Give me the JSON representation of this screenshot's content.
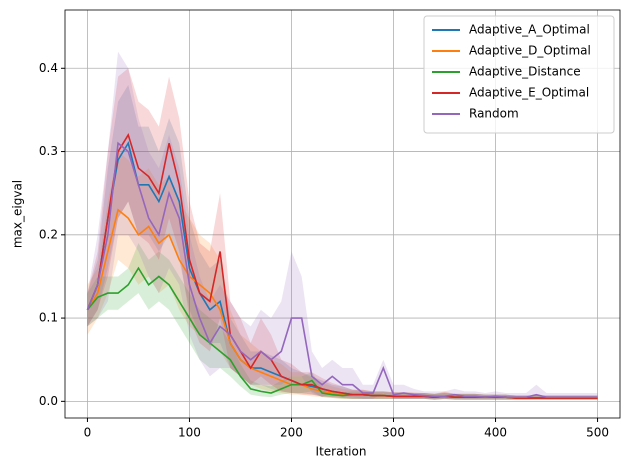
{
  "chart_data": {
    "type": "line",
    "x_label": "Iteration",
    "y_label": "max_eigval",
    "x": [
      0,
      10,
      20,
      30,
      40,
      50,
      60,
      70,
      80,
      90,
      100,
      110,
      120,
      130,
      140,
      150,
      160,
      170,
      180,
      190,
      200,
      210,
      220,
      230,
      240,
      250,
      260,
      270,
      280,
      290,
      300,
      310,
      320,
      330,
      340,
      350,
      360,
      370,
      380,
      390,
      400,
      410,
      420,
      430,
      440,
      450,
      460,
      470,
      480,
      490,
      500
    ],
    "xlim": [
      -22,
      522
    ],
    "ylim": [
      -0.02,
      0.47
    ],
    "xticks": [
      0,
      100,
      200,
      300,
      400,
      500
    ],
    "yticks": [
      {
        "value": 0,
        "label": "0.0"
      },
      0.1,
      0.2,
      0.3,
      0.4
    ],
    "grid": true,
    "legend": "upper right",
    "series": [
      {
        "name": "Adaptive_A_Optimal",
        "color": "#1f77b4",
        "values": [
          0.11,
          0.14,
          0.22,
          0.29,
          0.31,
          0.26,
          0.26,
          0.24,
          0.27,
          0.24,
          0.16,
          0.13,
          0.11,
          0.12,
          0.07,
          0.05,
          0.04,
          0.04,
          0.035,
          0.03,
          0.025,
          0.02,
          0.018,
          0.015,
          0.012,
          0.01,
          0.008,
          0.008,
          0.007,
          0.007,
          0.006,
          0.006,
          0.006,
          0.006,
          0.005,
          0.006,
          0.005,
          0.005,
          0.005,
          0.005,
          0.005,
          0.005,
          0.004,
          0.004,
          0.004,
          0.004,
          0.004,
          0.004,
          0.004,
          0.004,
          0.004
        ],
        "lower": [
          0.09,
          0.11,
          0.16,
          0.22,
          0.24,
          0.2,
          0.2,
          0.18,
          0.2,
          0.17,
          0.11,
          0.08,
          0.07,
          0.07,
          0.04,
          0.03,
          0.02,
          0.02,
          0.015,
          0.012,
          0.01,
          0.01,
          0.008,
          0.006,
          0.005,
          0.004,
          0.003,
          0.003,
          0.003,
          0.003,
          0.003,
          0.003,
          0.003,
          0.003,
          0.002,
          0.003,
          0.002,
          0.002,
          0.002,
          0.002,
          0.002,
          0.002,
          0.002,
          0.002,
          0.002,
          0.002,
          0.002,
          0.002,
          0.002,
          0.002,
          0.002
        ],
        "upper": [
          0.13,
          0.17,
          0.28,
          0.36,
          0.38,
          0.33,
          0.33,
          0.3,
          0.34,
          0.31,
          0.22,
          0.18,
          0.16,
          0.17,
          0.1,
          0.08,
          0.06,
          0.06,
          0.055,
          0.05,
          0.04,
          0.035,
          0.03,
          0.025,
          0.02,
          0.018,
          0.014,
          0.013,
          0.012,
          0.012,
          0.011,
          0.011,
          0.01,
          0.01,
          0.009,
          0.01,
          0.009,
          0.009,
          0.009,
          0.008,
          0.008,
          0.008,
          0.007,
          0.007,
          0.007,
          0.007,
          0.007,
          0.007,
          0.007,
          0.007,
          0.007
        ]
      },
      {
        "name": "Adaptive_D_Optimal",
        "color": "#ff7f0e",
        "values": [
          0.11,
          0.13,
          0.18,
          0.23,
          0.22,
          0.2,
          0.21,
          0.19,
          0.2,
          0.17,
          0.15,
          0.14,
          0.13,
          0.11,
          0.07,
          0.05,
          0.04,
          0.035,
          0.03,
          0.025,
          0.02,
          0.02,
          0.015,
          0.012,
          0.01,
          0.008,
          0.008,
          0.008,
          0.007,
          0.007,
          0.006,
          0.006,
          0.006,
          0.006,
          0.005,
          0.006,
          0.005,
          0.005,
          0.005,
          0.005,
          0.005,
          0.005,
          0.004,
          0.004,
          0.004,
          0.004,
          0.004,
          0.004,
          0.004,
          0.004,
          0.004
        ],
        "lower": [
          0.08,
          0.1,
          0.13,
          0.17,
          0.16,
          0.14,
          0.15,
          0.13,
          0.14,
          0.11,
          0.09,
          0.08,
          0.07,
          0.06,
          0.04,
          0.03,
          0.02,
          0.015,
          0.012,
          0.01,
          0.008,
          0.008,
          0.006,
          0.005,
          0.004,
          0.003,
          0.003,
          0.003,
          0.003,
          0.003,
          0.003,
          0.003,
          0.003,
          0.003,
          0.002,
          0.003,
          0.002,
          0.002,
          0.002,
          0.002,
          0.002,
          0.002,
          0.002,
          0.002,
          0.002,
          0.002,
          0.002,
          0.002,
          0.002,
          0.002,
          0.002
        ],
        "upper": [
          0.14,
          0.16,
          0.24,
          0.3,
          0.29,
          0.27,
          0.28,
          0.26,
          0.27,
          0.24,
          0.22,
          0.2,
          0.19,
          0.17,
          0.11,
          0.08,
          0.07,
          0.06,
          0.05,
          0.045,
          0.035,
          0.035,
          0.028,
          0.022,
          0.018,
          0.015,
          0.014,
          0.014,
          0.012,
          0.012,
          0.011,
          0.011,
          0.011,
          0.01,
          0.009,
          0.012,
          0.009,
          0.009,
          0.009,
          0.008,
          0.008,
          0.008,
          0.007,
          0.007,
          0.007,
          0.007,
          0.007,
          0.007,
          0.007,
          0.007,
          0.007
        ]
      },
      {
        "name": "Adaptive_Distance",
        "color": "#2ca02c",
        "values": [
          0.11,
          0.125,
          0.13,
          0.13,
          0.14,
          0.16,
          0.14,
          0.15,
          0.14,
          0.12,
          0.1,
          0.08,
          0.07,
          0.06,
          0.05,
          0.03,
          0.015,
          0.012,
          0.01,
          0.015,
          0.02,
          0.02,
          0.025,
          0.01,
          0.008,
          0.007,
          0.008,
          0.008,
          0.007,
          0.007,
          0.006,
          0.006,
          0.006,
          0.006,
          0.005,
          0.006,
          0.005,
          0.005,
          0.005,
          0.005,
          0.005,
          0.005,
          0.004,
          0.004,
          0.004,
          0.004,
          0.004,
          0.004,
          0.004,
          0.004,
          0.004
        ],
        "lower": [
          0.09,
          0.1,
          0.11,
          0.11,
          0.12,
          0.13,
          0.11,
          0.12,
          0.11,
          0.09,
          0.07,
          0.05,
          0.04,
          0.04,
          0.03,
          0.018,
          0.008,
          0.006,
          0.005,
          0.008,
          0.01,
          0.01,
          0.012,
          0.005,
          0.004,
          0.003,
          0.003,
          0.003,
          0.003,
          0.003,
          0.003,
          0.003,
          0.003,
          0.003,
          0.002,
          0.003,
          0.002,
          0.002,
          0.002,
          0.002,
          0.002,
          0.002,
          0.002,
          0.002,
          0.002,
          0.002,
          0.002,
          0.002,
          0.002,
          0.002,
          0.002
        ],
        "upper": [
          0.13,
          0.15,
          0.15,
          0.15,
          0.16,
          0.19,
          0.17,
          0.18,
          0.17,
          0.15,
          0.13,
          0.11,
          0.1,
          0.09,
          0.07,
          0.045,
          0.025,
          0.02,
          0.018,
          0.025,
          0.03,
          0.03,
          0.035,
          0.016,
          0.013,
          0.011,
          0.012,
          0.012,
          0.011,
          0.011,
          0.01,
          0.01,
          0.01,
          0.01,
          0.009,
          0.01,
          0.009,
          0.009,
          0.009,
          0.008,
          0.008,
          0.008,
          0.007,
          0.007,
          0.007,
          0.007,
          0.007,
          0.007,
          0.007,
          0.007,
          0.007
        ]
      },
      {
        "name": "Adaptive_E_Optimal",
        "color": "#d62728",
        "values": [
          0.11,
          0.14,
          0.22,
          0.3,
          0.32,
          0.28,
          0.27,
          0.25,
          0.31,
          0.26,
          0.17,
          0.13,
          0.12,
          0.18,
          0.08,
          0.06,
          0.04,
          0.06,
          0.05,
          0.03,
          0.025,
          0.02,
          0.02,
          0.015,
          0.012,
          0.01,
          0.008,
          0.008,
          0.007,
          0.007,
          0.006,
          0.006,
          0.006,
          0.006,
          0.005,
          0.006,
          0.005,
          0.005,
          0.005,
          0.005,
          0.005,
          0.005,
          0.004,
          0.004,
          0.004,
          0.004,
          0.004,
          0.004,
          0.004,
          0.004,
          0.004
        ],
        "lower": [
          0.09,
          0.11,
          0.15,
          0.22,
          0.24,
          0.2,
          0.19,
          0.17,
          0.22,
          0.18,
          0.1,
          0.07,
          0.06,
          0.1,
          0.04,
          0.03,
          0.02,
          0.03,
          0.02,
          0.012,
          0.01,
          0.008,
          0.008,
          0.006,
          0.005,
          0.004,
          0.003,
          0.003,
          0.003,
          0.003,
          0.003,
          0.003,
          0.003,
          0.003,
          0.002,
          0.003,
          0.002,
          0.002,
          0.002,
          0.002,
          0.002,
          0.002,
          0.002,
          0.002,
          0.002,
          0.002,
          0.002,
          0.002,
          0.002,
          0.002,
          0.002
        ],
        "upper": [
          0.13,
          0.18,
          0.3,
          0.39,
          0.4,
          0.36,
          0.35,
          0.33,
          0.39,
          0.34,
          0.24,
          0.19,
          0.18,
          0.25,
          0.12,
          0.1,
          0.07,
          0.1,
          0.08,
          0.05,
          0.045,
          0.035,
          0.035,
          0.028,
          0.022,
          0.018,
          0.014,
          0.014,
          0.012,
          0.012,
          0.011,
          0.011,
          0.01,
          0.01,
          0.009,
          0.011,
          0.009,
          0.009,
          0.009,
          0.008,
          0.008,
          0.008,
          0.007,
          0.007,
          0.007,
          0.007,
          0.007,
          0.007,
          0.007,
          0.007,
          0.007
        ]
      },
      {
        "name": "Random",
        "color": "#9467bd",
        "values": [
          0.11,
          0.14,
          0.2,
          0.31,
          0.3,
          0.26,
          0.22,
          0.2,
          0.25,
          0.22,
          0.14,
          0.1,
          0.07,
          0.09,
          0.08,
          0.06,
          0.05,
          0.06,
          0.05,
          0.06,
          0.1,
          0.1,
          0.03,
          0.02,
          0.03,
          0.02,
          0.02,
          0.01,
          0.01,
          0.04,
          0.008,
          0.01,
          0.008,
          0.007,
          0.006,
          0.006,
          0.008,
          0.006,
          0.006,
          0.005,
          0.006,
          0.005,
          0.005,
          0.005,
          0.008,
          0.005,
          0.005,
          0.005,
          0.005,
          0.005,
          0.005
        ],
        "lower": [
          0.09,
          0.1,
          0.12,
          0.2,
          0.2,
          0.18,
          0.15,
          0.13,
          0.16,
          0.14,
          0.08,
          0.05,
          0.03,
          0.04,
          0.04,
          0.03,
          0.02,
          0.02,
          0.02,
          0.02,
          0.03,
          0.03,
          0.01,
          0.005,
          0.01,
          0.005,
          0.005,
          0.003,
          0.003,
          0.01,
          0.003,
          0.003,
          0.003,
          0.003,
          0.002,
          0.002,
          0.003,
          0.002,
          0.002,
          0.002,
          0.002,
          0.002,
          0.002,
          0.002,
          0.003,
          0.002,
          0.002,
          0.002,
          0.002,
          0.002,
          0.002
        ],
        "upper": [
          0.13,
          0.2,
          0.3,
          0.42,
          0.4,
          0.34,
          0.3,
          0.28,
          0.32,
          0.28,
          0.2,
          0.15,
          0.12,
          0.14,
          0.12,
          0.1,
          0.09,
          0.11,
          0.1,
          0.12,
          0.18,
          0.15,
          0.06,
          0.04,
          0.05,
          0.04,
          0.04,
          0.02,
          0.02,
          0.05,
          0.02,
          0.02,
          0.015,
          0.012,
          0.012,
          0.012,
          0.015,
          0.012,
          0.012,
          0.01,
          0.012,
          0.01,
          0.01,
          0.01,
          0.02,
          0.01,
          0.01,
          0.01,
          0.01,
          0.01,
          0.01
        ]
      }
    ]
  }
}
